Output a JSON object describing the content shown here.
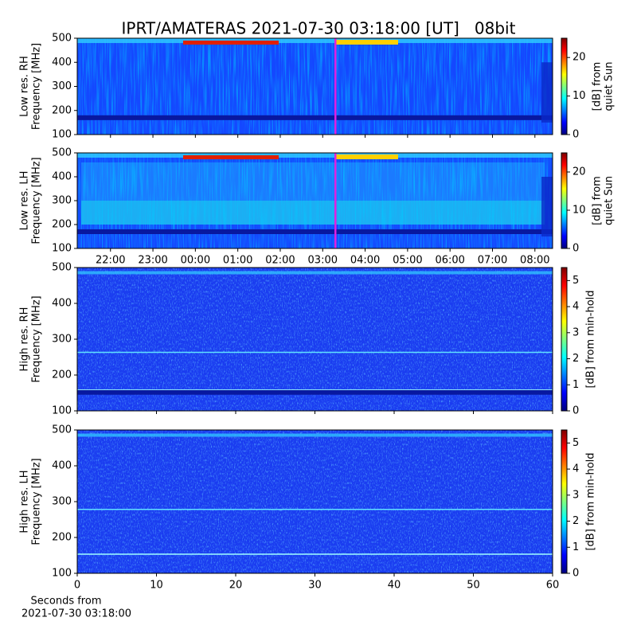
{
  "title": "IPRT/AMATERAS 2021-07-30 03:18:00 [UT]   08bit",
  "chart_data": [
    {
      "type": "spectrogram",
      "ylabel": [
        "Low res. RH",
        "Frequency [MHz]"
      ],
      "ylim": [
        100,
        500
      ],
      "yticks": [
        100,
        200,
        300,
        400,
        500
      ],
      "xlim": [
        "21:13",
        "08:25"
      ],
      "xticks": [
        "22:00",
        "23:00",
        "00:00",
        "01:00",
        "02:00",
        "03:00",
        "04:00",
        "05:00",
        "06:00",
        "07:00",
        "08:00"
      ],
      "show_xtick_labels": false,
      "marker_x": "03:18",
      "marker_color": "#e020e0",
      "colormap": "jet",
      "clim": [
        0,
        25
      ],
      "cticks": [
        0,
        10,
        20
      ],
      "clabel": [
        "[dB] from",
        "quiet Sun"
      ]
    },
    {
      "type": "spectrogram",
      "ylabel": [
        "Low res. LH",
        "Frequency [MHz]"
      ],
      "ylim": [
        100,
        500
      ],
      "yticks": [
        100,
        200,
        300,
        400,
        500
      ],
      "xlim": [
        "21:13",
        "08:25"
      ],
      "xticks": [
        "22:00",
        "23:00",
        "00:00",
        "01:00",
        "02:00",
        "03:00",
        "04:00",
        "05:00",
        "06:00",
        "07:00",
        "08:00"
      ],
      "show_xtick_labels": true,
      "marker_x": "03:18",
      "marker_color": "#e020e0",
      "colormap": "jet",
      "clim": [
        0,
        25
      ],
      "cticks": [
        0,
        10,
        20
      ],
      "clabel": [
        "[dB] from",
        "quiet Sun"
      ]
    },
    {
      "type": "spectrogram",
      "ylabel": [
        "High res. RH",
        "Frequency [MHz]"
      ],
      "ylim": [
        100,
        500
      ],
      "yticks": [
        100,
        200,
        300,
        400,
        500
      ],
      "xlim": [
        0,
        60
      ],
      "xticks": [
        0,
        10,
        20,
        30,
        40,
        50,
        60
      ],
      "show_xtick_labels": false,
      "colormap": "jet",
      "clim": [
        0,
        5.5
      ],
      "cticks": [
        0,
        1,
        2,
        3,
        4,
        5
      ],
      "clabel": [
        "[dB] from min-hold"
      ]
    },
    {
      "type": "spectrogram",
      "ylabel": [
        "High res. LH",
        "Frequency [MHz]"
      ],
      "ylim": [
        100,
        500
      ],
      "yticks": [
        100,
        200,
        300,
        400,
        500
      ],
      "xlim": [
        0,
        60
      ],
      "xticks": [
        0,
        10,
        20,
        30,
        40,
        50,
        60
      ],
      "show_xtick_labels": true,
      "xlabel": [
        "Seconds from",
        "2021-07-30 03:18:00"
      ],
      "colormap": "jet",
      "clim": [
        0,
        5.5
      ],
      "cticks": [
        0,
        1,
        2,
        3,
        4,
        5
      ],
      "clabel": [
        "[dB] from min-hold"
      ]
    }
  ]
}
